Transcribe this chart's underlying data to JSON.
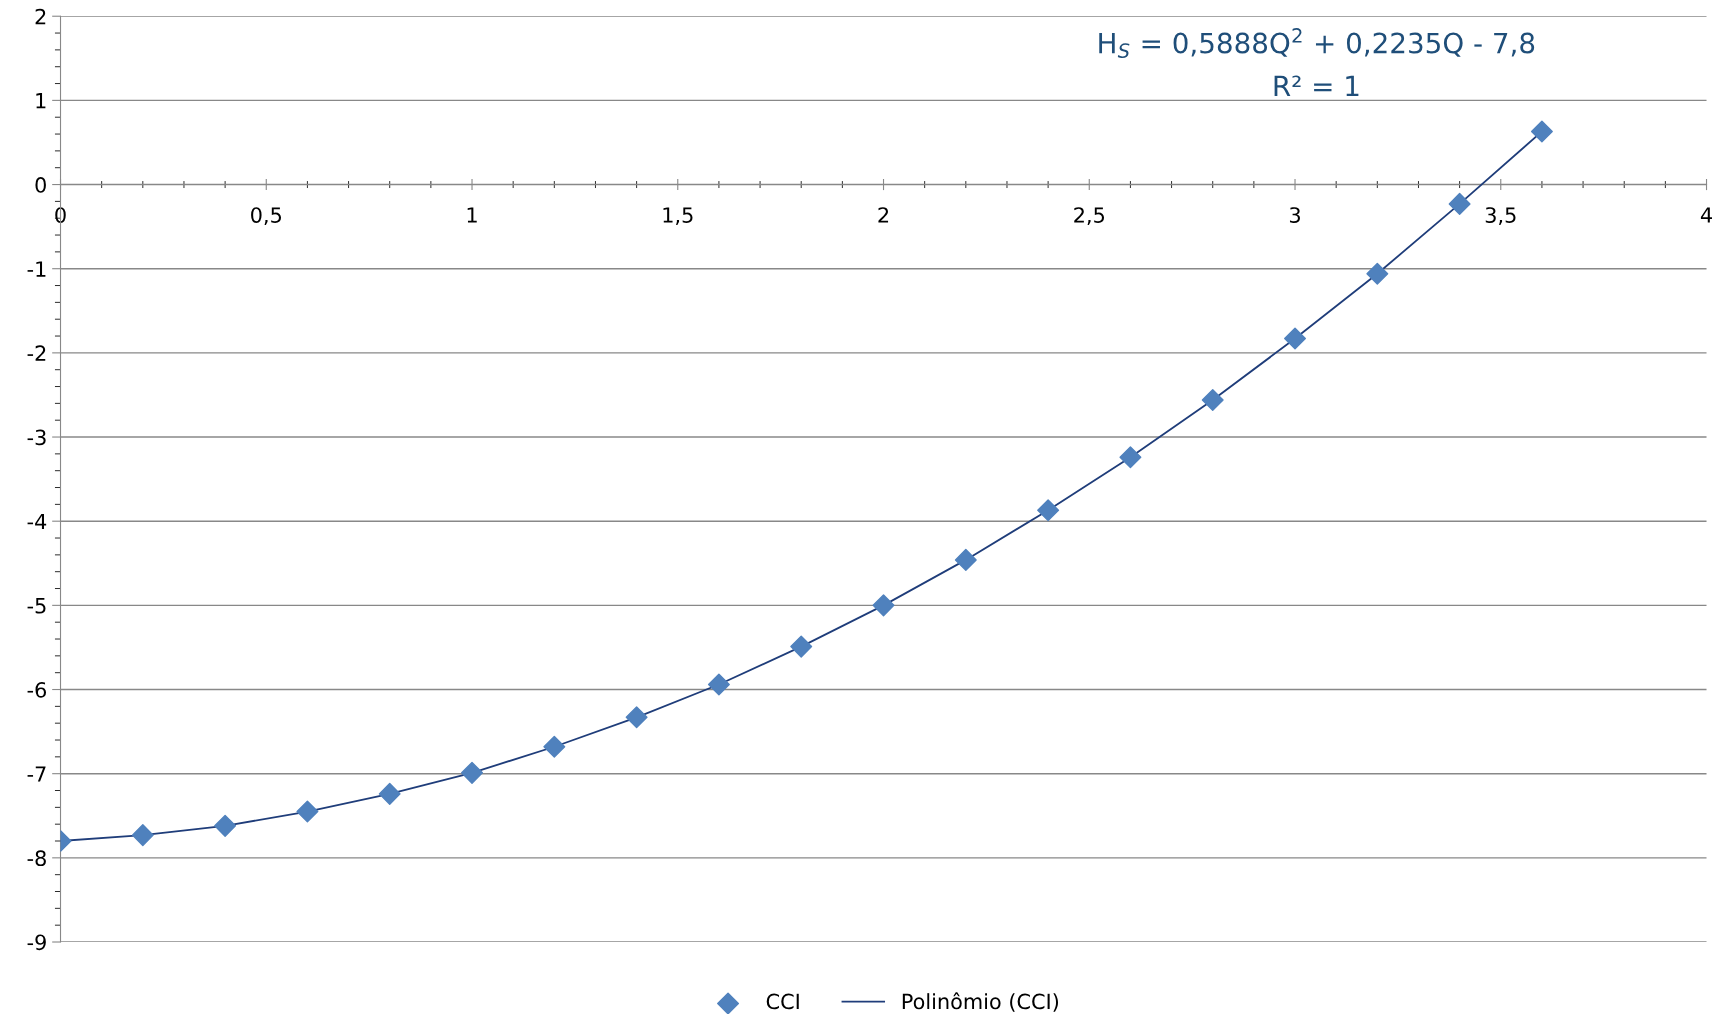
{
  "chart_data": {
    "type": "scatter",
    "x": [
      0,
      0.2,
      0.4,
      0.6,
      0.8,
      1.0,
      1.2,
      1.4,
      1.6,
      1.8,
      2.0,
      2.2,
      2.4,
      2.6,
      2.8,
      3.0,
      3.2,
      3.4,
      3.6
    ],
    "series": [
      {
        "name": "CCI",
        "color": "#4f81bd",
        "marker": "diamond",
        "values": [
          -7.8,
          -7.73,
          -7.62,
          -7.45,
          -7.24,
          -6.99,
          -6.68,
          -6.33,
          -5.94,
          -5.49,
          -5.0,
          -4.46,
          -3.87,
          -3.24,
          -2.56,
          -1.83,
          -1.06,
          -0.23,
          0.63
        ]
      },
      {
        "name": "Polinômio (CCI)",
        "type": "line",
        "color": "#1f3d7a",
        "marker": "none",
        "line_style": "solid",
        "x": [
          0,
          0.2,
          0.4,
          0.6,
          0.8,
          1.0,
          1.2,
          1.4,
          1.6,
          1.8,
          2.0,
          2.2,
          2.4,
          2.6,
          2.8,
          3.0,
          3.2,
          3.4,
          3.6
        ],
        "values": [
          -7.8,
          -7.73,
          -7.62,
          -7.45,
          -7.24,
          -6.99,
          -6.68,
          -6.33,
          -5.94,
          -5.49,
          -5.0,
          -4.46,
          -3.87,
          -3.24,
          -2.56,
          -1.83,
          -1.06,
          -0.23,
          0.63
        ]
      }
    ],
    "xlim": [
      0,
      4
    ],
    "xticks": [
      0,
      {
        "value": 0.5,
        "label": "0,5"
      },
      1,
      {
        "value": 1.5,
        "label": "1,5"
      },
      2,
      {
        "value": 2.5,
        "label": "2,5"
      },
      3,
      {
        "value": 3.5,
        "label": "3,5"
      },
      4
    ],
    "ylim": [
      -9,
      2
    ],
    "yticks": [
      -9,
      -8,
      -7,
      -6,
      -5,
      -4,
      -3,
      -2,
      -1,
      0,
      1,
      2
    ],
    "grid": "y",
    "legend": "bottom",
    "annotations": [
      "H$_{S}$ = 0,5888Q$^{2}$ + 0,2235Q - 7,8",
      "R² = 1"
    ]
  }
}
